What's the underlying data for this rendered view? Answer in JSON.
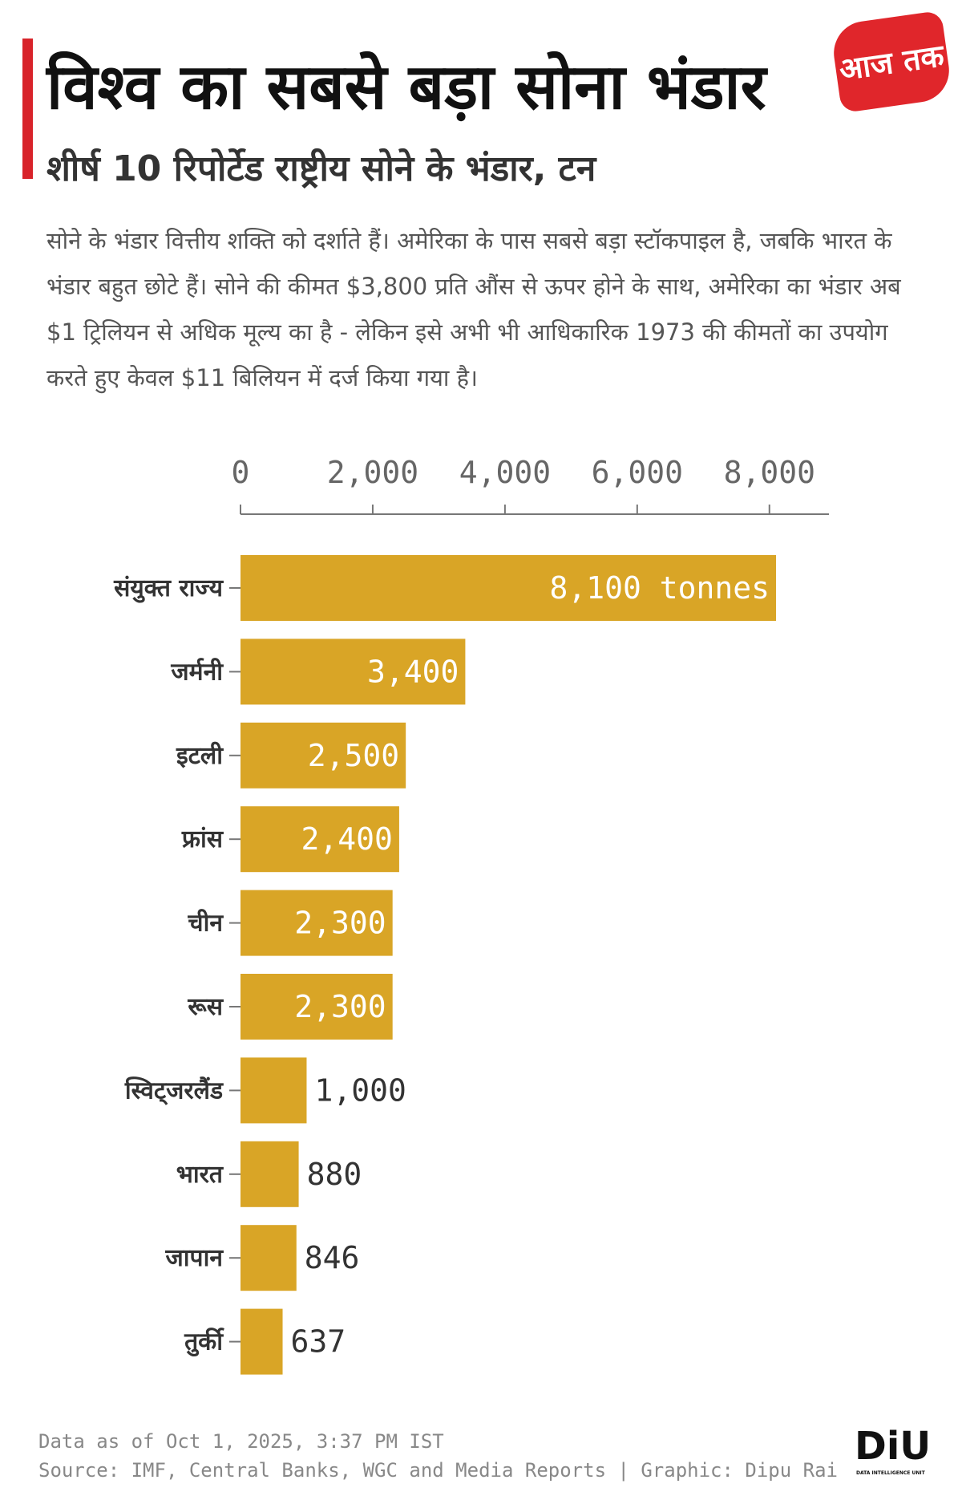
{
  "chart_data": {
    "type": "bar",
    "orientation": "horizontal",
    "title": "विश्व का सबसे बड़ा सोना भंडार",
    "subtitle": "शीर्ष 10 रिपोर्टेड राष्ट्रीय सोने के भंडार, टन",
    "description": "सोने के भंडार वित्तीय शक्ति को दर्शाते हैं। अमेरिका के पास सबसे बड़ा स्टॉकपाइल है, जबकि भारत के भंडार बहुत छोटे हैं। सोने की कीमत $3,800 प्रति औंस से ऊपर होने के साथ, अमेरिका का भंडार अब $1 ट्रिलियन से अधिक मूल्य का है - लेकिन इसे अभी भी आधिकारिक 1973 की कीमतों का उपयोग करते हुए केवल $11 बिलियन में दर्ज किया गया है।",
    "categories": [
      "संयुक्त राज्य",
      "जर्मनी",
      "इटली",
      "फ्रांस",
      "चीन",
      "रूस",
      "स्विट्जरलैंड",
      "भारत",
      "जापान",
      "तुर्की"
    ],
    "values": [
      8100,
      3400,
      2500,
      2400,
      2300,
      2300,
      1000,
      880,
      846,
      637
    ],
    "value_labels": [
      "8,100 tonnes",
      "3,400",
      "2,500",
      "2,400",
      "2,300",
      "2,300",
      "1,000",
      "880",
      "846",
      "637"
    ],
    "color": "#d9a526",
    "xlim": [
      0,
      8900
    ],
    "xticks": [
      0,
      {
        "value": 2000,
        "label": "2,000"
      },
      {
        "value": 4000,
        "label": "4,000"
      },
      {
        "value": 6000,
        "label": "6,000"
      },
      {
        "value": 8000,
        "label": "8,000"
      }
    ],
    "footer_date": "Data as of Oct 1, 2025, 3:37 PM IST",
    "footer_source": "Source: IMF, Central Banks, WGC and Media Reports | Graphic: Dipu Rai",
    "logo": "आज तक",
    "diu_logo": "DiU",
    "diu_caption": "DATA INTELLIGENCE UNIT"
  }
}
